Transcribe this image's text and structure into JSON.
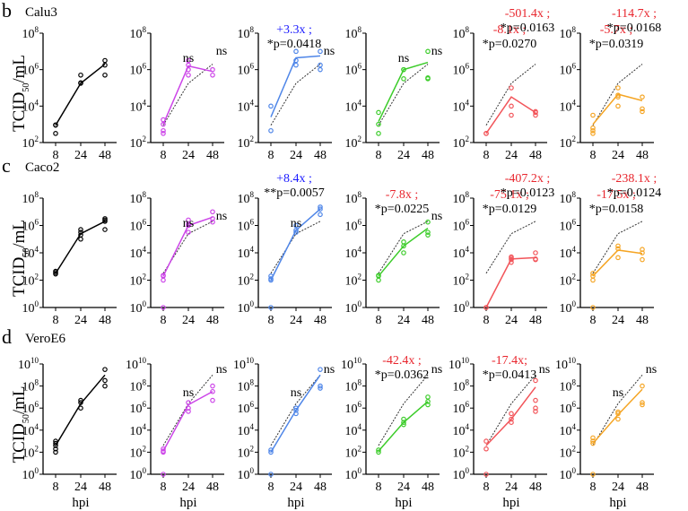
{
  "figure": {
    "x_label": "hpi",
    "y_label_main": "TCID",
    "y_label_sub": "50",
    "y_label_tail": "/mL",
    "ref_color": "#333333"
  },
  "rows": [
    {
      "letter": "b",
      "cell_line": "Calu3"
    },
    {
      "letter": "c",
      "cell_line": "Caco2"
    },
    {
      "letter": "d",
      "cell_line": "VeroE6"
    }
  ],
  "chart_data": [
    {
      "type": "scatter",
      "row": 0,
      "col": 0,
      "color": "#000000",
      "x": [
        8,
        24,
        48
      ],
      "ylim_exp": [
        2,
        8
      ],
      "y_tick_exps": [
        2,
        4,
        6,
        8
      ],
      "mean_exp": [
        2.95,
        5.25,
        6.3
      ],
      "points_exp": [
        [
          2.5,
          2.95,
          2.97
        ],
        [
          5.25,
          5.28,
          5.7
        ],
        [
          5.7,
          6.25,
          6.5
        ]
      ],
      "annotations": []
    },
    {
      "type": "scatter",
      "row": 0,
      "col": 1,
      "color": "#cc44e8",
      "x": [
        8,
        24,
        48
      ],
      "ylim_exp": [
        2,
        8
      ],
      "y_tick_exps": [
        2,
        4,
        6,
        8
      ],
      "mean_exp": [
        3.0,
        6.2,
        5.9
      ],
      "points_exp": [
        [
          2.5,
          2.65,
          3.0,
          3.25
        ],
        [
          5.7,
          6.0,
          6.25,
          6.5
        ],
        [
          5.7,
          6.0
        ]
      ],
      "annotations": [
        {
          "x": 24,
          "lines": [
            {
              "text": "ns",
              "color": "#000000"
            }
          ]
        },
        {
          "x": 48,
          "lines": [
            {
              "text": "ns",
              "color": "#000000"
            }
          ]
        }
      ]
    },
    {
      "type": "scatter",
      "row": 0,
      "col": 2,
      "color": "#4f86e8",
      "x": [
        8,
        24,
        48
      ],
      "ylim_exp": [
        2,
        8
      ],
      "y_tick_exps": [
        2,
        4,
        6,
        8
      ],
      "mean_exp": [
        3.4,
        6.65,
        6.75
      ],
      "points_exp": [
        [
          2.65,
          4.0
        ],
        [
          6.25,
          6.5,
          7.0
        ],
        [
          6.0,
          6.25,
          7.0
        ]
      ],
      "annotations": [
        {
          "x": 8,
          "lines": [
            {
              "text": "+3.3x ;",
              "color": "#1a1aff"
            },
            {
              "text": "*p=0.0418",
              "color": "#000000"
            }
          ]
        },
        {
          "x": 48,
          "lines": [
            {
              "text": "ns",
              "color": "#000000"
            }
          ]
        }
      ]
    },
    {
      "type": "scatter",
      "row": 0,
      "col": 3,
      "color": "#3ccc2a",
      "x": [
        8,
        24,
        48
      ],
      "ylim_exp": [
        2,
        8
      ],
      "y_tick_exps": [
        2,
        4,
        6,
        8
      ],
      "mean_exp": [
        3.15,
        6.0,
        6.4
      ],
      "points_exp": [
        [
          2.5,
          3.0,
          3.65
        ],
        [
          5.5,
          6.0,
          6.0
        ],
        [
          5.5,
          5.55,
          7.0
        ]
      ],
      "annotations": [
        {
          "x": 24,
          "lines": [
            {
              "text": "ns",
              "color": "#000000"
            }
          ]
        },
        {
          "x": 48,
          "lines": [
            {
              "text": "ns",
              "color": "#000000"
            }
          ]
        }
      ]
    },
    {
      "type": "scatter",
      "row": 0,
      "col": 4,
      "color": "#f2555a",
      "x": [
        8,
        24,
        48
      ],
      "ylim_exp": [
        2,
        8
      ],
      "y_tick_exps": [
        2,
        4,
        6,
        8
      ],
      "mean_exp": [
        2.5,
        4.5,
        3.65
      ],
      "points_exp": [
        [
          2.5,
          2.5
        ],
        [
          3.5,
          4.0,
          5.0
        ],
        [
          3.5,
          3.65,
          3.7
        ]
      ],
      "annotations": [
        {
          "x": 8,
          "lines": [
            {
              "text": "-8.1x ;",
              "color": "#e8252d"
            },
            {
              "text": "*p=0.0270",
              "color": "#000000"
            }
          ]
        },
        {
          "x": 24,
          "lines": [
            {
              "text": "-501.4x ;",
              "color": "#e8252d"
            },
            {
              "text": "*p=0.0163",
              "color": "#000000"
            }
          ]
        }
      ]
    },
    {
      "type": "scatter",
      "row": 0,
      "col": 5,
      "color": "#f5a524",
      "x": [
        8,
        24,
        48
      ],
      "ylim_exp": [
        2,
        8
      ],
      "y_tick_exps": [
        2,
        4,
        6,
        8
      ],
      "mean_exp": [
        3.0,
        4.65,
        4.3
      ],
      "points_exp": [
        [
          2.5,
          2.65,
          2.8,
          3.5
        ],
        [
          4.0,
          4.5,
          4.6,
          5.0
        ],
        [
          3.7,
          3.85,
          4.5
        ]
      ],
      "annotations": [
        {
          "x": 8,
          "lines": [
            {
              "text": "-5.7x ;",
              "color": "#e8252d"
            },
            {
              "text": "*p=0.0319",
              "color": "#000000"
            }
          ]
        },
        {
          "x": 24,
          "lines": [
            {
              "text": "-114.7x ;",
              "color": "#e8252d"
            },
            {
              "text": "*p=0.0168",
              "color": "#000000"
            }
          ]
        }
      ]
    },
    {
      "type": "scatter",
      "row": 1,
      "col": 0,
      "color": "#000000",
      "x": [
        8,
        24,
        48
      ],
      "ylim_exp": [
        0,
        8
      ],
      "y_tick_exps": [
        0,
        2,
        4,
        6,
        8
      ],
      "mean_exp": [
        2.5,
        5.4,
        6.3
      ],
      "points_exp": [
        [
          2.45,
          2.55,
          2.65
        ],
        [
          5.0,
          5.3,
          5.5,
          5.7
        ],
        [
          5.7,
          6.3,
          6.4,
          6.5
        ]
      ],
      "annotations": []
    },
    {
      "type": "scatter",
      "row": 1,
      "col": 1,
      "color": "#cc44e8",
      "x": [
        8,
        24,
        48
      ],
      "ylim_exp": [
        0,
        8
      ],
      "y_tick_exps": [
        0,
        2,
        4,
        6,
        8
      ],
      "mean_exp": [
        2.3,
        6.0,
        6.6
      ],
      "points_exp": [
        [
          0.0,
          2.0,
          2.3,
          2.35
        ],
        [
          5.5,
          6.0,
          6.1,
          6.4
        ],
        [
          6.25,
          6.5,
          7.0
        ]
      ],
      "annotations": [
        {
          "x": 24,
          "lines": [
            {
              "text": "ns",
              "color": "#000000"
            }
          ]
        },
        {
          "x": 48,
          "lines": [
            {
              "text": "ns",
              "color": "#000000"
            }
          ]
        }
      ]
    },
    {
      "type": "scatter",
      "row": 1,
      "col": 2,
      "color": "#4f86e8",
      "x": [
        8,
        24,
        48
      ],
      "ylim_exp": [
        0,
        8
      ],
      "y_tick_exps": [
        0,
        2,
        4,
        6,
        8
      ],
      "mean_exp": [
        2.0,
        5.65,
        7.2
      ],
      "points_exp": [
        [
          0.0,
          2.0,
          2.1,
          2.3
        ],
        [
          5.5,
          5.65,
          6.0
        ],
        [
          6.8,
          7.2,
          7.35
        ]
      ],
      "annotations": [
        {
          "x": 24,
          "lines": [
            {
              "text": "ns",
              "color": "#000000"
            }
          ]
        },
        {
          "x": 48,
          "lines": [
            {
              "text": "+8.4x ;",
              "color": "#1a1aff"
            },
            {
              "text": "**p=0.0057",
              "color": "#000000"
            }
          ]
        }
      ]
    },
    {
      "type": "scatter",
      "row": 1,
      "col": 3,
      "color": "#3ccc2a",
      "x": [
        8,
        24,
        48
      ],
      "ylim_exp": [
        0,
        8
      ],
      "y_tick_exps": [
        0,
        2,
        4,
        6,
        8
      ],
      "mean_exp": [
        2.3,
        4.5,
        5.8
      ],
      "points_exp": [
        [
          2.0,
          2.3,
          2.35
        ],
        [
          4.0,
          4.5,
          4.8
        ],
        [
          5.3,
          5.5,
          6.25
        ]
      ],
      "annotations": [
        {
          "x": 8,
          "lines": [
            {
              "text": "-7.8x ;",
              "color": "#e8252d"
            },
            {
              "text": "*p=0.0225",
              "color": "#000000"
            }
          ]
        },
        {
          "x": 48,
          "lines": [
            {
              "text": "ns",
              "color": "#000000"
            }
          ]
        }
      ]
    },
    {
      "type": "scatter",
      "row": 1,
      "col": 4,
      "color": "#f2555a",
      "x": [
        8,
        24,
        48
      ],
      "ylim_exp": [
        0,
        8
      ],
      "y_tick_exps": [
        0,
        2,
        4,
        6,
        8
      ],
      "mean_exp": [
        0.0,
        3.55,
        3.65
      ],
      "points_exp": [
        [
          0.0,
          0.0
        ],
        [
          3.3,
          3.5,
          3.6,
          3.7
        ],
        [
          3.5,
          3.55,
          4.0
        ]
      ],
      "annotations": [
        {
          "x": 8,
          "lines": [
            {
              "text": "-75.1x ;",
              "color": "#e8252d"
            },
            {
              "text": "*p=0.0129",
              "color": "#000000"
            }
          ]
        },
        {
          "x": 24,
          "lines": [
            {
              "text": "-407.2x ;",
              "color": "#e8252d"
            },
            {
              "text": "*p=0.0123",
              "color": "#000000"
            }
          ]
        }
      ]
    },
    {
      "type": "scatter",
      "row": 1,
      "col": 5,
      "color": "#f5a524",
      "x": [
        8,
        24,
        48
      ],
      "ylim_exp": [
        0,
        8
      ],
      "y_tick_exps": [
        0,
        2,
        4,
        6,
        8
      ],
      "mean_exp": [
        2.3,
        4.2,
        3.95
      ],
      "points_exp": [
        [
          0.0,
          2.0,
          2.3,
          2.5
        ],
        [
          3.65,
          4.3,
          4.5
        ],
        [
          3.5,
          4.0,
          4.25
        ]
      ],
      "annotations": [
        {
          "x": 8,
          "lines": [
            {
              "text": "-17.5x ;",
              "color": "#e8252d"
            },
            {
              "text": "*p=0.0158",
              "color": "#000000"
            }
          ]
        },
        {
          "x": 24,
          "lines": [
            {
              "text": "-238.1x ;",
              "color": "#e8252d"
            },
            {
              "text": "*p=0.0124",
              "color": "#000000"
            }
          ]
        }
      ]
    },
    {
      "type": "scatter",
      "row": 2,
      "col": 0,
      "color": "#000000",
      "x": [
        8,
        24,
        48
      ],
      "ylim_exp": [
        0,
        10
      ],
      "y_tick_exps": [
        0,
        2,
        4,
        6,
        8,
        10
      ],
      "mean_exp": [
        2.6,
        6.4,
        9.0
      ],
      "points_exp": [
        [
          2.0,
          2.3,
          2.6,
          2.8,
          3.0
        ],
        [
          6.0,
          6.5,
          6.7
        ],
        [
          8.0,
          8.5,
          9.5
        ]
      ],
      "annotations": []
    },
    {
      "type": "scatter",
      "row": 2,
      "col": 1,
      "color": "#cc44e8",
      "x": [
        8,
        24,
        48
      ],
      "ylim_exp": [
        0,
        10
      ],
      "y_tick_exps": [
        0,
        2,
        4,
        6,
        8,
        10
      ],
      "mean_exp": [
        2.1,
        6.3,
        7.5
      ],
      "points_exp": [
        [
          0.0,
          2.0,
          2.1,
          2.3
        ],
        [
          5.7,
          6.0,
          6.5
        ],
        [
          6.7,
          7.5,
          8.0
        ]
      ],
      "annotations": [
        {
          "x": 24,
          "lines": [
            {
              "text": "ns",
              "color": "#000000"
            }
          ]
        },
        {
          "x": 48,
          "lines": [
            {
              "text": "ns",
              "color": "#000000"
            }
          ]
        }
      ]
    },
    {
      "type": "scatter",
      "row": 2,
      "col": 1,
      "color": "#4f86e8",
      "x": [
        8,
        24,
        48
      ],
      "ylim_exp": [
        0,
        10
      ],
      "y_tick_exps": [
        0,
        2,
        4,
        6,
        8,
        10
      ],
      "mean_exp": [
        2.0,
        5.8,
        9.0
      ],
      "points_exp": [
        [
          0.0,
          2.0,
          2.2
        ],
        [
          5.5,
          5.8,
          6.0
        ],
        [
          7.8,
          8.0,
          9.5
        ]
      ],
      "annotations": [
        {
          "x": 24,
          "lines": [
            {
              "text": "ns",
              "color": "#000000"
            }
          ]
        },
        {
          "x": 48,
          "lines": [
            {
              "text": "ns",
              "color": "#000000"
            }
          ]
        }
      ]
    },
    {
      "type": "scatter",
      "row": 2,
      "col": 3,
      "color": "#3ccc2a",
      "x": [
        8,
        24,
        48
      ],
      "ylim_exp": [
        0,
        10
      ],
      "y_tick_exps": [
        0,
        2,
        4,
        6,
        8,
        10
      ],
      "mean_exp": [
        2.1,
        4.7,
        6.6
      ],
      "points_exp": [
        [
          2.0,
          2.2
        ],
        [
          4.5,
          4.7,
          5.0
        ],
        [
          6.3,
          6.6,
          7.0
        ]
      ],
      "annotations": [
        {
          "x": 8,
          "lines": [
            {
              "text": "-42.4x ;",
              "color": "#e8252d"
            },
            {
              "text": "*p=0.0362",
              "color": "#000000"
            }
          ]
        },
        {
          "x": 48,
          "lines": [
            {
              "text": "ns",
              "color": "#000000"
            }
          ]
        }
      ]
    },
    {
      "type": "scatter",
      "row": 2,
      "col": 4,
      "color": "#f2555a",
      "x": [
        8,
        24,
        48
      ],
      "ylim_exp": [
        0,
        10
      ],
      "y_tick_exps": [
        0,
        2,
        4,
        6,
        8,
        10
      ],
      "mean_exp": [
        2.6,
        5.0,
        7.9
      ],
      "points_exp": [
        [
          0.0,
          2.3,
          3.0
        ],
        [
          4.7,
          5.0,
          5.5
        ],
        [
          5.7,
          6.0,
          6.7,
          8.5
        ]
      ],
      "annotations": [
        {
          "x": 8,
          "lines": [
            {
              "text": "-17.4x;",
              "color": "#e8252d"
            },
            {
              "text": "*p=0.0413",
              "color": "#000000"
            }
          ]
        },
        {
          "x": 48,
          "lines": [
            {
              "text": "ns",
              "color": "#000000"
            }
          ]
        }
      ]
    },
    {
      "type": "scatter",
      "row": 2,
      "col": 5,
      "color": "#f5a524",
      "x": [
        8,
        24,
        48
      ],
      "ylim_exp": [
        0,
        10
      ],
      "y_tick_exps": [
        0,
        2,
        4,
        6,
        8,
        10
      ],
      "mean_exp": [
        2.8,
        5.4,
        7.7
      ],
      "points_exp": [
        [
          0.0,
          2.8,
          3.0,
          3.3
        ],
        [
          5.0,
          5.5,
          5.65
        ],
        [
          6.3,
          6.5,
          8.0
        ]
      ],
      "annotations": [
        {
          "x": 24,
          "lines": [
            {
              "text": "ns",
              "color": "#000000"
            }
          ]
        },
        {
          "x": 48,
          "lines": [
            {
              "text": "ns",
              "color": "#000000"
            }
          ]
        }
      ]
    }
  ],
  "reference_means_exp": {
    "row0": [
      2.95,
      5.25,
      6.3
    ],
    "row1": [
      2.5,
      5.4,
      6.3
    ],
    "row2": [
      2.6,
      6.4,
      9.0
    ]
  }
}
